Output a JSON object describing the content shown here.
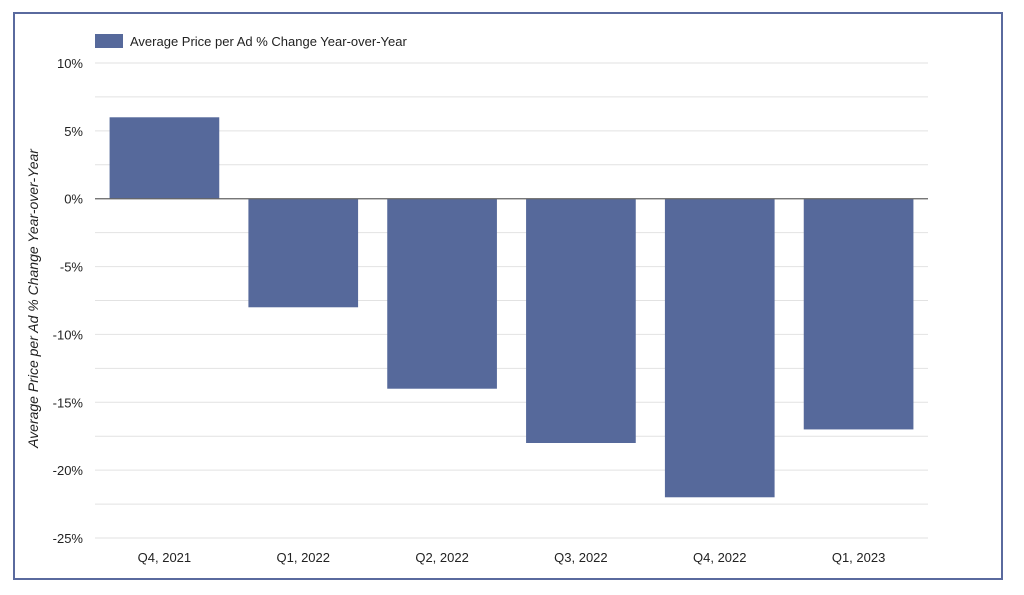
{
  "chart_data": {
    "type": "bar",
    "categories": [
      "Q4, 2021",
      "Q1, 2022",
      "Q2, 2022",
      "Q3, 2022",
      "Q4, 2022",
      "Q1, 2023"
    ],
    "series": [
      {
        "name": "Average Price per Ad % Change Year-over-Year",
        "values": [
          6,
          -8,
          -14,
          -18,
          -22,
          -17
        ]
      }
    ],
    "title": "",
    "xlabel": "",
    "ylabel": "Average Price per Ad % Change Year-over-Year",
    "ylim": [
      -25,
      10
    ],
    "y_ticks": [
      10,
      5,
      0,
      -5,
      -10,
      -15,
      -20,
      -25
    ],
    "y_tick_labels": [
      "10%",
      "5%",
      "0%",
      "-5%",
      "-10%",
      "-15%",
      "-20%",
      "-25%"
    ],
    "grid": true,
    "legend_position": "top-left",
    "colors": {
      "bar": "#56699b",
      "frame": "#5a6a9e",
      "grid": "#e2e2e2",
      "zero_line": "#666666"
    }
  }
}
